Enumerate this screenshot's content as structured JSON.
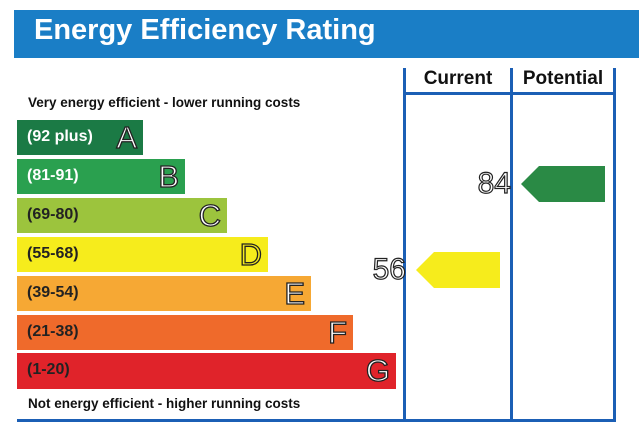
{
  "chart_data": {
    "type": "bar",
    "title": "Energy Efficiency Rating",
    "top_note": "Very energy efficient - lower running costs",
    "bottom_note": "Not energy efficient - higher running costs",
    "columns": [
      "Current",
      "Potential"
    ],
    "bands": [
      {
        "letter": "A",
        "range": "(92 plus)",
        "color": "#1b7a45",
        "text_color": "#ffffff"
      },
      {
        "letter": "B",
        "range": "(81-91)",
        "color": "#2aa04f",
        "text_color": "#ffffff"
      },
      {
        "letter": "C",
        "range": "(69-80)",
        "color": "#9cc43d",
        "text_color": "#222222"
      },
      {
        "letter": "D",
        "range": "(55-68)",
        "color": "#f6ec1c",
        "text_color": "#222222"
      },
      {
        "letter": "E",
        "range": "(39-54)",
        "color": "#f6a834",
        "text_color": "#222222"
      },
      {
        "letter": "F",
        "range": "(21-38)",
        "color": "#ef6a2b",
        "text_color": "#222222"
      },
      {
        "letter": "G",
        "range": "(1-20)",
        "color": "#e0232a",
        "text_color": "#222222"
      }
    ],
    "current": {
      "value": "56",
      "band": "D",
      "color": "#f6ec1c"
    },
    "potential": {
      "value": "84",
      "band": "B",
      "color": "#2a8a45"
    }
  }
}
